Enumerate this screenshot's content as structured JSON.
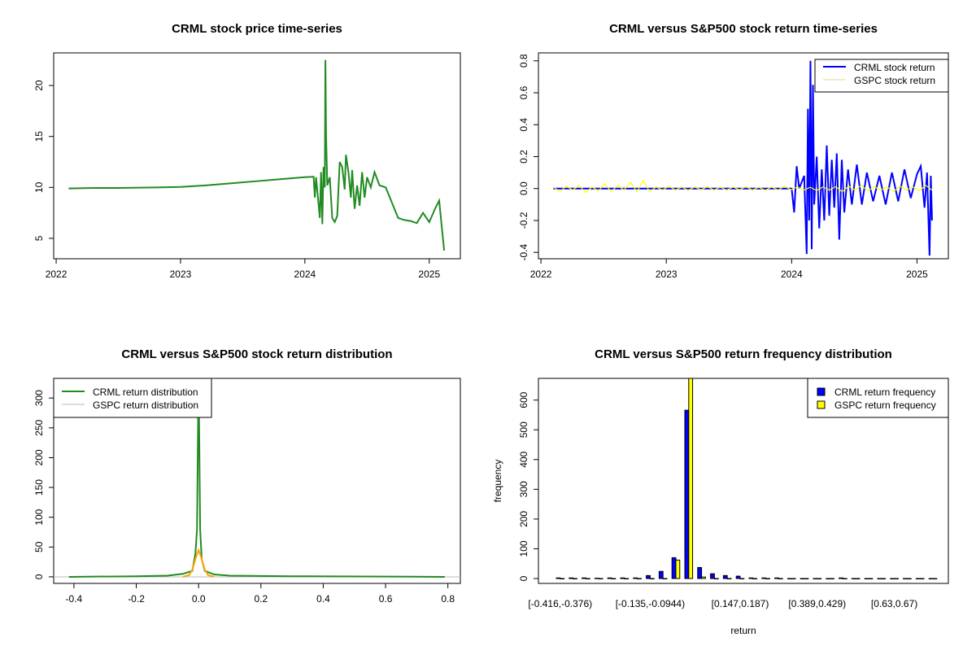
{
  "chart_data": [
    {
      "type": "line",
      "title": "CRML stock price time-series",
      "xlabel": "",
      "ylabel": "",
      "xlim": [
        2021.98,
        2025.25
      ],
      "ylim": [
        3.0,
        23.2
      ],
      "x_ticks": [
        2022,
        2023,
        2024,
        2025
      ],
      "x_tick_labels": [
        "2022",
        "2023",
        "2024",
        "2025"
      ],
      "y_ticks": [
        5,
        10,
        15,
        20
      ],
      "y_tick_labels": [
        "5",
        "10",
        "15",
        "20"
      ],
      "series": [
        {
          "name": "CRML price",
          "color": "#228B22",
          "points": [
            [
              2022.1,
              9.9
            ],
            [
              2022.3,
              9.95
            ],
            [
              2022.5,
              9.95
            ],
            [
              2022.8,
              10.0
            ],
            [
              2023.0,
              10.05
            ],
            [
              2023.2,
              10.2
            ],
            [
              2023.4,
              10.4
            ],
            [
              2023.6,
              10.6
            ],
            [
              2023.8,
              10.8
            ],
            [
              2024.0,
              11.0
            ],
            [
              2024.07,
              11.05
            ],
            [
              2024.08,
              9.0
            ],
            [
              2024.09,
              11.0
            ],
            [
              2024.12,
              7.0
            ],
            [
              2024.13,
              11.5
            ],
            [
              2024.14,
              6.4
            ],
            [
              2024.15,
              12.0
            ],
            [
              2024.16,
              10.0
            ],
            [
              2024.165,
              22.5
            ],
            [
              2024.17,
              15.3
            ],
            [
              2024.18,
              10.2
            ],
            [
              2024.2,
              11.0
            ],
            [
              2024.22,
              7.0
            ],
            [
              2024.24,
              6.6
            ],
            [
              2024.26,
              7.2
            ],
            [
              2024.28,
              12.5
            ],
            [
              2024.3,
              12.0
            ],
            [
              2024.32,
              9.8
            ],
            [
              2024.33,
              13.2
            ],
            [
              2024.35,
              11.5
            ],
            [
              2024.37,
              9.0
            ],
            [
              2024.38,
              11.7
            ],
            [
              2024.4,
              7.9
            ],
            [
              2024.42,
              10.2
            ],
            [
              2024.44,
              8.2
            ],
            [
              2024.46,
              11.5
            ],
            [
              2024.48,
              9.0
            ],
            [
              2024.5,
              11.0
            ],
            [
              2024.53,
              10.0
            ],
            [
              2024.56,
              11.5
            ],
            [
              2024.6,
              10.2
            ],
            [
              2024.65,
              10.0
            ],
            [
              2024.7,
              8.5
            ],
            [
              2024.75,
              7.0
            ],
            [
              2024.8,
              6.8
            ],
            [
              2024.85,
              6.7
            ],
            [
              2024.9,
              6.5
            ],
            [
              2024.95,
              7.5
            ],
            [
              2025.0,
              6.6
            ],
            [
              2025.05,
              8.0
            ],
            [
              2025.08,
              8.7
            ],
            [
              2025.1,
              6.2
            ],
            [
              2025.12,
              3.8
            ]
          ]
        }
      ]
    },
    {
      "type": "line",
      "title": "CRML versus S&P500 stock return time-series",
      "xlabel": "",
      "ylabel": "",
      "xlim": [
        2021.98,
        2025.25
      ],
      "ylim": [
        -0.44,
        0.85
      ],
      "x_ticks": [
        2022,
        2023,
        2024,
        2025
      ],
      "x_tick_labels": [
        "2022",
        "2023",
        "2024",
        "2025"
      ],
      "y_ticks": [
        -0.4,
        -0.2,
        0.0,
        0.2,
        0.4,
        0.6,
        0.8
      ],
      "y_tick_labels": [
        "-0.4",
        "-0.2",
        "0.0",
        "0.2",
        "0.4",
        "0.6",
        "0.8"
      ],
      "legend": {
        "position": "top-right",
        "entries": [
          "CRML stock return",
          "GSPC stock return"
        ]
      },
      "series": [
        {
          "name": "CRML stock return",
          "color": "#0000FF",
          "points": [
            [
              2022.1,
              0
            ],
            [
              2024.0,
              0
            ],
            [
              2024.02,
              -0.15
            ],
            [
              2024.04,
              0.14
            ],
            [
              2024.06,
              0
            ],
            [
              2024.1,
              0.08
            ],
            [
              2024.12,
              -0.41
            ],
            [
              2024.13,
              0.5
            ],
            [
              2024.14,
              -0.2
            ],
            [
              2024.15,
              0.8
            ],
            [
              2024.16,
              -0.38
            ],
            [
              2024.17,
              0.65
            ],
            [
              2024.18,
              -0.1
            ],
            [
              2024.2,
              0.2
            ],
            [
              2024.22,
              -0.25
            ],
            [
              2024.24,
              0.12
            ],
            [
              2024.26,
              -0.2
            ],
            [
              2024.28,
              0.27
            ],
            [
              2024.3,
              -0.17
            ],
            [
              2024.32,
              0.18
            ],
            [
              2024.34,
              -0.12
            ],
            [
              2024.36,
              0.22
            ],
            [
              2024.38,
              -0.32
            ],
            [
              2024.4,
              0.18
            ],
            [
              2024.42,
              -0.15
            ],
            [
              2024.45,
              0.12
            ],
            [
              2024.48,
              -0.1
            ],
            [
              2024.52,
              0.15
            ],
            [
              2024.56,
              -0.1
            ],
            [
              2024.6,
              0.1
            ],
            [
              2024.65,
              -0.08
            ],
            [
              2024.7,
              0.08
            ],
            [
              2024.75,
              -0.1
            ],
            [
              2024.8,
              0.1
            ],
            [
              2024.85,
              -0.08
            ],
            [
              2024.9,
              0.12
            ],
            [
              2024.95,
              -0.06
            ],
            [
              2025.0,
              0.09
            ],
            [
              2025.03,
              0.14
            ],
            [
              2025.06,
              -0.12
            ],
            [
              2025.08,
              0.1
            ],
            [
              2025.1,
              -0.42
            ],
            [
              2025.11,
              0.08
            ],
            [
              2025.12,
              -0.2
            ]
          ]
        },
        {
          "name": "GSPC stock return",
          "color": "#FFFF00",
          "values": [
            0.01,
            -0.02,
            0.015,
            -0.01,
            0.02,
            -0.025,
            0.01,
            -0.015,
            0.03,
            -0.02,
            0.02,
            -0.01,
            0.04,
            -0.02,
            0.05,
            -0.02,
            0.01,
            -0.01,
            0.015,
            -0.01,
            0.01,
            -0.012,
            0.01,
            -0.008,
            0.012,
            -0.01,
            0.008,
            -0.01,
            0.01,
            -0.008,
            0.012,
            -0.01,
            0.008,
            -0.012,
            0.01,
            -0.01,
            0.015,
            -0.008,
            0.01,
            -0.01,
            0.008,
            -0.012,
            0.01,
            -0.01,
            0.012,
            -0.02,
            0.015,
            -0.01,
            0.02,
            -0.015,
            0.012,
            -0.01,
            0.01,
            -0.02,
            0.015,
            -0.01,
            0.01,
            -0.015,
            0.02,
            -0.01
          ]
        }
      ]
    },
    {
      "type": "line",
      "title": "CRML versus S&P500 stock return distribution",
      "xlabel": "",
      "ylabel": "",
      "xlim": [
        -0.465,
        0.84
      ],
      "ylim": [
        -11,
        333
      ],
      "x_ticks": [
        -0.4,
        -0.2,
        0.0,
        0.2,
        0.4,
        0.6,
        0.8
      ],
      "x_tick_labels": [
        "-0.4",
        "-0.2",
        "0.0",
        "0.2",
        "0.4",
        "0.6",
        "0.8"
      ],
      "y_ticks": [
        0,
        50,
        100,
        150,
        200,
        250,
        300
      ],
      "y_tick_labels": [
        "0",
        "50",
        "100",
        "150",
        "200",
        "250",
        "300"
      ],
      "legend": {
        "position": "top-left",
        "entries": [
          "CRML return distribution",
          "GSPC return distribution"
        ]
      },
      "series": [
        {
          "name": "CRML return distribution",
          "color": "#228B22",
          "points": [
            [
              -0.416,
              0
            ],
            [
              -0.2,
              1
            ],
            [
              -0.1,
              2
            ],
            [
              -0.05,
              5
            ],
            [
              -0.02,
              10
            ],
            [
              -0.01,
              40
            ],
            [
              -0.005,
              80
            ],
            [
              0,
              345
            ],
            [
              0.005,
              80
            ],
            [
              0.01,
              30
            ],
            [
              0.02,
              10
            ],
            [
              0.05,
              4
            ],
            [
              0.1,
              2
            ],
            [
              0.3,
              1
            ],
            [
              0.79,
              0
            ]
          ]
        },
        {
          "name": "GSPC return distribution",
          "color": "#FFA500",
          "points": [
            [
              -0.05,
              0
            ],
            [
              -0.03,
              3
            ],
            [
              -0.02,
              12
            ],
            [
              -0.01,
              30
            ],
            [
              0,
              45
            ],
            [
              0.01,
              30
            ],
            [
              0.02,
              12
            ],
            [
              0.03,
              3
            ],
            [
              0.05,
              0
            ]
          ]
        }
      ]
    },
    {
      "type": "bar",
      "title": "CRML versus S&P500 return frequency distribution",
      "xlabel": "return",
      "ylabel": "frequency",
      "ylim": [
        0,
        673
      ],
      "y_ticks": [
        0,
        100,
        200,
        300,
        400,
        500,
        600
      ],
      "y_tick_labels": [
        "0",
        "100",
        "200",
        "300",
        "400",
        "500",
        "600"
      ],
      "shown_category_labels": {
        "0": "[-0.416,-0.376)",
        "7": "[-0.135,-0.0944)",
        "14": "[0.147,0.187)",
        "20": "[0.389,0.429)",
        "26": "[0.63,0.67)"
      },
      "legend": {
        "position": "top-right",
        "entries": [
          "CRML return frequency",
          "GSPC return frequency"
        ]
      },
      "series": [
        {
          "name": "CRML return frequency",
          "color": "#0000FF",
          "values": [
            2,
            2,
            2,
            1,
            2,
            2,
            2,
            10,
            24,
            70,
            566,
            37,
            16,
            10,
            8,
            2,
            2,
            2,
            0,
            0,
            0,
            0,
            2,
            0,
            0,
            0,
            0,
            0,
            0,
            0
          ]
        },
        {
          "name": "GSPC return frequency",
          "color": "#FFFF00",
          "values": [
            0,
            0,
            0,
            0,
            0,
            0,
            0,
            0,
            0,
            62,
            700,
            5,
            0,
            0,
            0,
            0,
            0,
            0,
            0,
            0,
            0,
            0,
            0,
            0,
            0,
            0,
            0,
            0,
            0,
            0
          ]
        }
      ]
    }
  ]
}
